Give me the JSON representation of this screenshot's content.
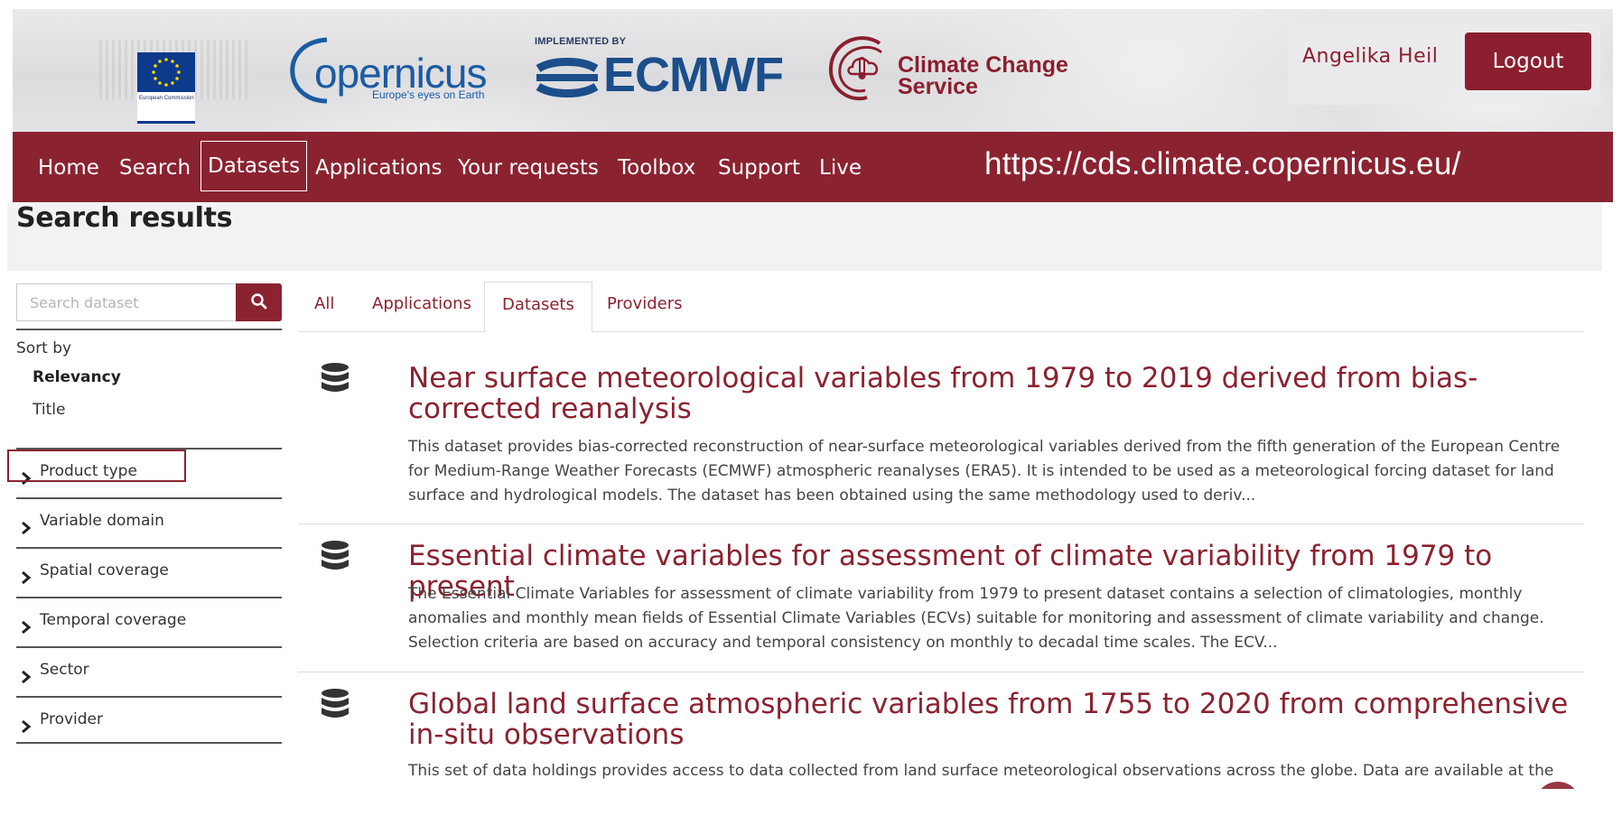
{
  "header": {
    "ec_logo_text": "European Commission",
    "copernicus_word": "opernicus",
    "copernicus_tagline": "Europe's eyes on Earth",
    "ecmwf_implemented": "IMPLEMENTED BY",
    "ecmwf_word": "ECMWF",
    "c3s_line1": "Climate Change",
    "c3s_line2": "Service",
    "user_name": "Angelika Heil",
    "logout_label": "Logout"
  },
  "nav": {
    "items": [
      "Home",
      "Search",
      "Datasets",
      "Applications",
      "Your requests",
      "Toolbox",
      "Support",
      "Live"
    ],
    "active": "Datasets",
    "url": "https://cds.climate.copernicus.eu/"
  },
  "page_title": "Search results",
  "sidebar": {
    "search_placeholder": "Search dataset",
    "sort_label": "Sort by",
    "sort_options": [
      "Relevancy",
      "Title"
    ],
    "sort_selected": "Relevancy",
    "facets": [
      "Product type",
      "Variable domain",
      "Spatial coverage",
      "Temporal coverage",
      "Sector",
      "Provider"
    ]
  },
  "tabs": {
    "items": [
      "All",
      "Applications",
      "Datasets",
      "Providers"
    ],
    "active": "Datasets"
  },
  "results": [
    {
      "title": "Near surface meteorological variables from 1979 to 2019 derived from bias-corrected reanalysis",
      "description": "This dataset provides bias-corrected reconstruction of near-surface meteorological variables derived from the fifth generation of the European Centre for Medium-Range Weather Forecasts (ECMWF) atmospheric reanalyses (ERA5). It is intended to be used as a meteorological forcing dataset for land surface and hydrological models. The dataset has been obtained using the same methodology used to deriv..."
    },
    {
      "title": "Essential climate variables for assessment of climate variability from 1979 to present",
      "description": "The Essential Climate Variables for assessment of climate variability from 1979 to present dataset contains a selection of climatologies, monthly anomalies and monthly mean fields of Essential Climate Variables (ECVs) suitable for monitoring and assessment of climate variability and change. Selection criteria are based on accuracy and temporal consistency on monthly to decadal time scales. The ECV..."
    },
    {
      "title": "Global land surface atmospheric variables from 1755 to 2020 from comprehensive in-situ observations",
      "description": "This set of data holdings provides access to data collected from land surface meteorological observations across the globe. Data are available at the"
    }
  ],
  "colors": {
    "brand": "#8b2230",
    "copernicus_blue": "#1b5ba3",
    "ecmwf_blue": "#1b4e8a"
  },
  "icons": [
    "search-icon",
    "chevron-right-icon",
    "database-icon"
  ]
}
